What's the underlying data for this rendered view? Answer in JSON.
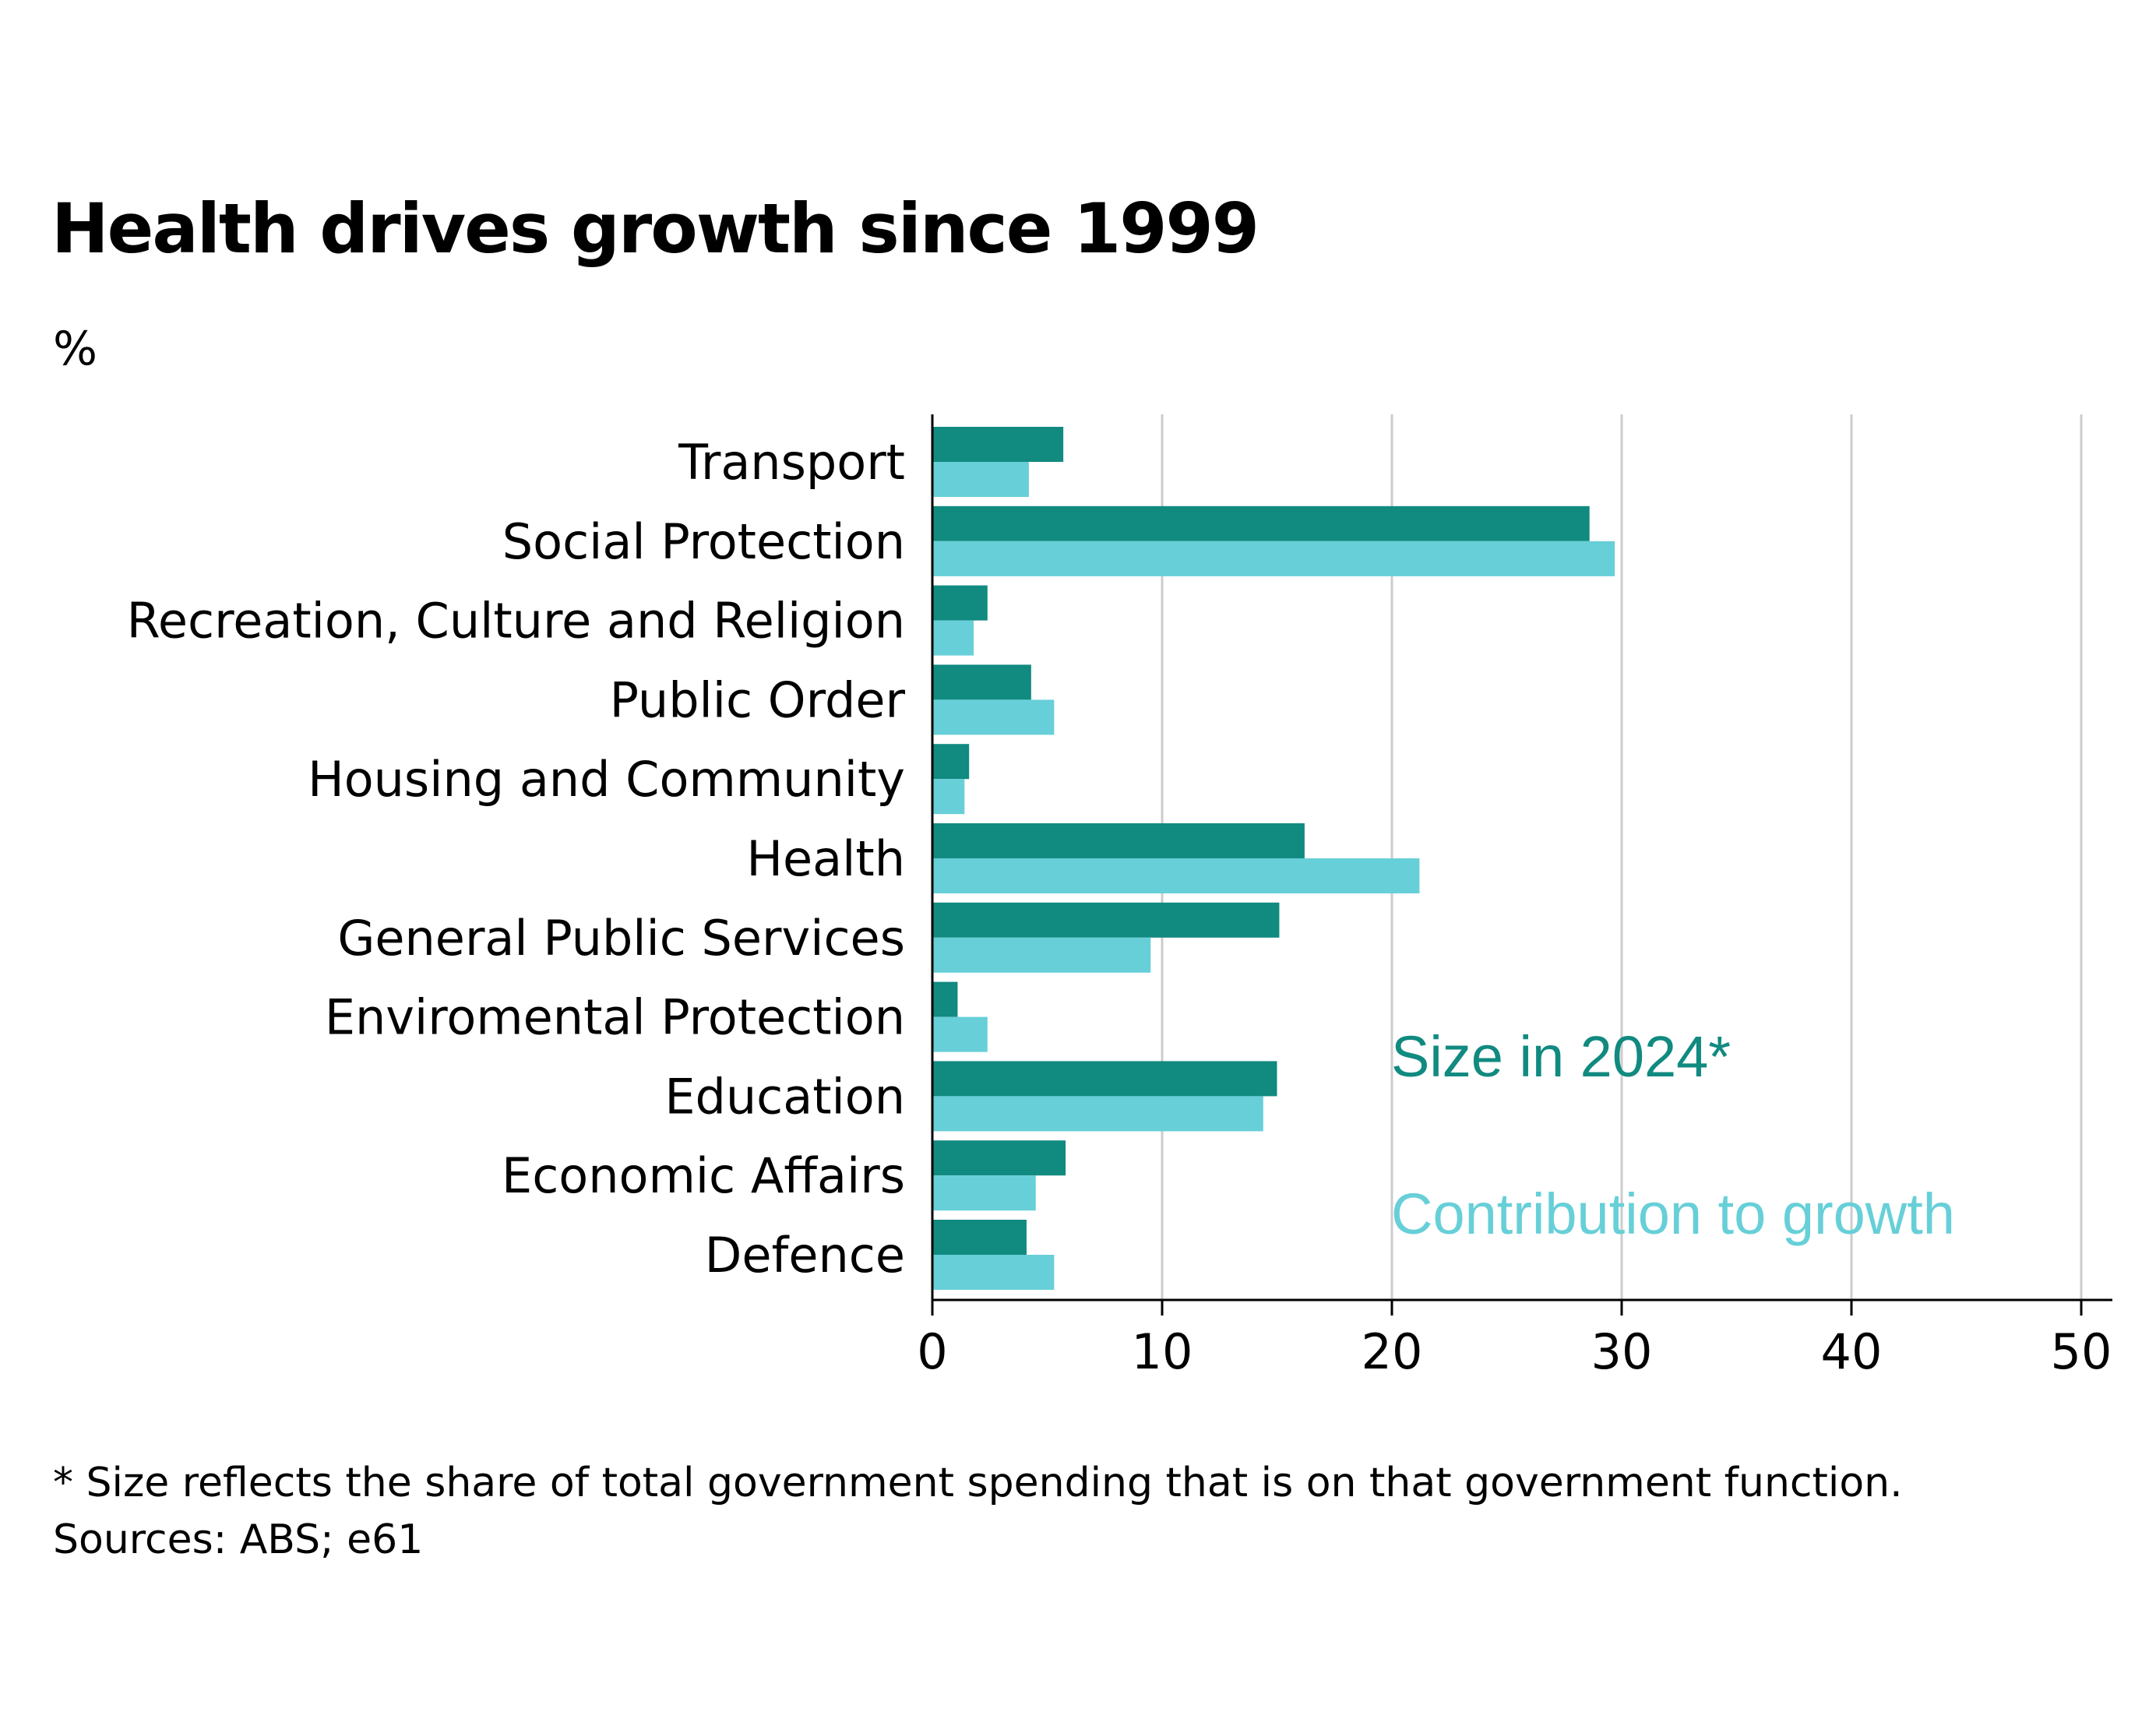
{
  "title": "Health drives growth since 1999",
  "unit": "%",
  "footnote": "* Size reflects the share of total government spending that is on that government function.",
  "sources": "Sources: ABS; e61",
  "colors": {
    "size_2024": "#118a80",
    "contribution": "#67cfd8",
    "grid": "#cccccc",
    "axis": "#000000"
  },
  "chart_data": {
    "type": "bar",
    "orientation": "horizontal",
    "categories": [
      "Transport",
      "Social Protection",
      "Recreation, Culture and Religion",
      "Public Order",
      "Housing and Community",
      "Health",
      "General Public Services",
      "Enviromental Protection",
      "Education",
      "Economic Affairs",
      "Defence"
    ],
    "series": [
      {
        "name": "Size in 2024*",
        "color": "#118a80",
        "values": [
          5.7,
          28.6,
          2.4,
          4.3,
          1.6,
          16.2,
          15.1,
          1.1,
          15.0,
          5.8,
          4.1
        ]
      },
      {
        "name": "Contribution to growth",
        "color": "#67cfd8",
        "values": [
          4.2,
          29.7,
          1.8,
          5.3,
          1.4,
          21.2,
          9.5,
          2.4,
          14.4,
          4.5,
          5.3
        ]
      }
    ],
    "xlim": [
      0,
      50
    ],
    "xticks": [
      0,
      10,
      20,
      30,
      40,
      50
    ],
    "grid": "vertical",
    "legend": "inline labels, lower right"
  }
}
